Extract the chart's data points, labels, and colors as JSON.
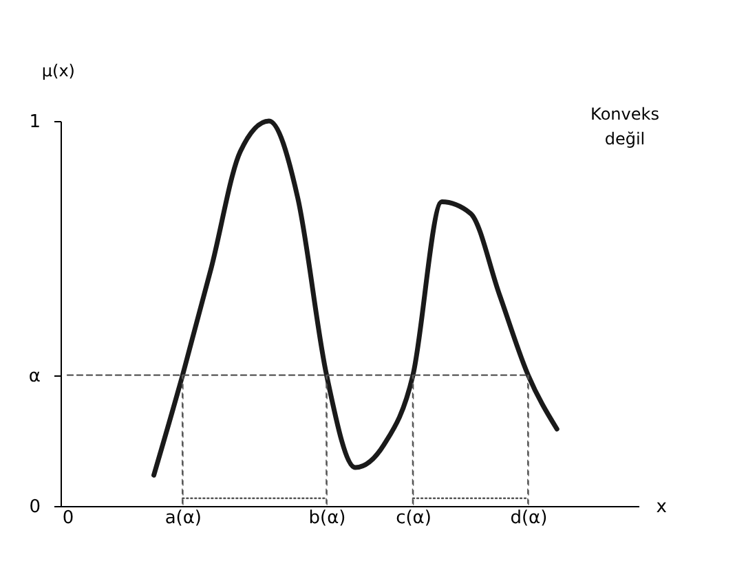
{
  "chart_data": {
    "type": "line",
    "xlabel": "x",
    "ylabel": "μ(x)",
    "annotations": [
      "Konveks değil"
    ],
    "categories": [
      "0",
      null,
      null,
      null,
      "a(α)",
      null,
      null,
      null,
      null,
      "b(α)",
      null,
      null,
      "c(α)",
      null,
      null,
      null,
      "d(α)",
      null,
      null,
      null
    ],
    "ylim": [
      0,
      1
    ],
    "yticks": [
      0,
      {
        "value": 0.34,
        "label": "α"
      },
      1
    ],
    "grid": false,
    "series": [
      {
        "color": "#1a1a1a",
        "line_style": "solid",
        "values": [
          null,
          null,
          null,
          0.08,
          0.34,
          0.62,
          0.92,
          1.0,
          0.8,
          0.34,
          0.1,
          0.16,
          0.34,
          0.79,
          0.76,
          0.55,
          0.34,
          0.2,
          null,
          null
        ]
      },
      {
        "color": "#555555",
        "line_style": "dashed",
        "values": [
          0.34,
          0.34,
          0.34,
          0.34,
          0.34,
          0.34,
          0.34,
          0.34,
          0.34,
          0.34,
          0.34,
          0.34,
          0.34,
          0.34,
          0.34,
          0.34,
          0.34,
          null,
          null,
          null
        ]
      },
      {
        "type": "bar",
        "color": "#555555",
        "line_style": "dashed",
        "values": [
          null,
          null,
          null,
          null,
          0.34,
          null,
          null,
          null,
          null,
          0.34,
          null,
          null,
          0.34,
          null,
          null,
          null,
          0.34,
          null,
          null,
          null
        ]
      },
      {
        "color": "#555555",
        "line_style": "dotted",
        "values": [
          null,
          null,
          null,
          null,
          0.02,
          0.02,
          0.02,
          0.02,
          0.02,
          0.02,
          null,
          null,
          null,
          null,
          null,
          null,
          null,
          null,
          null,
          null
        ]
      },
      {
        "color": "#555555",
        "line_style": "dotted",
        "values": [
          null,
          null,
          null,
          null,
          null,
          null,
          null,
          null,
          null,
          null,
          null,
          null,
          0.02,
          0.02,
          0.02,
          0.02,
          0.02,
          null,
          null,
          null
        ]
      }
    ]
  }
}
